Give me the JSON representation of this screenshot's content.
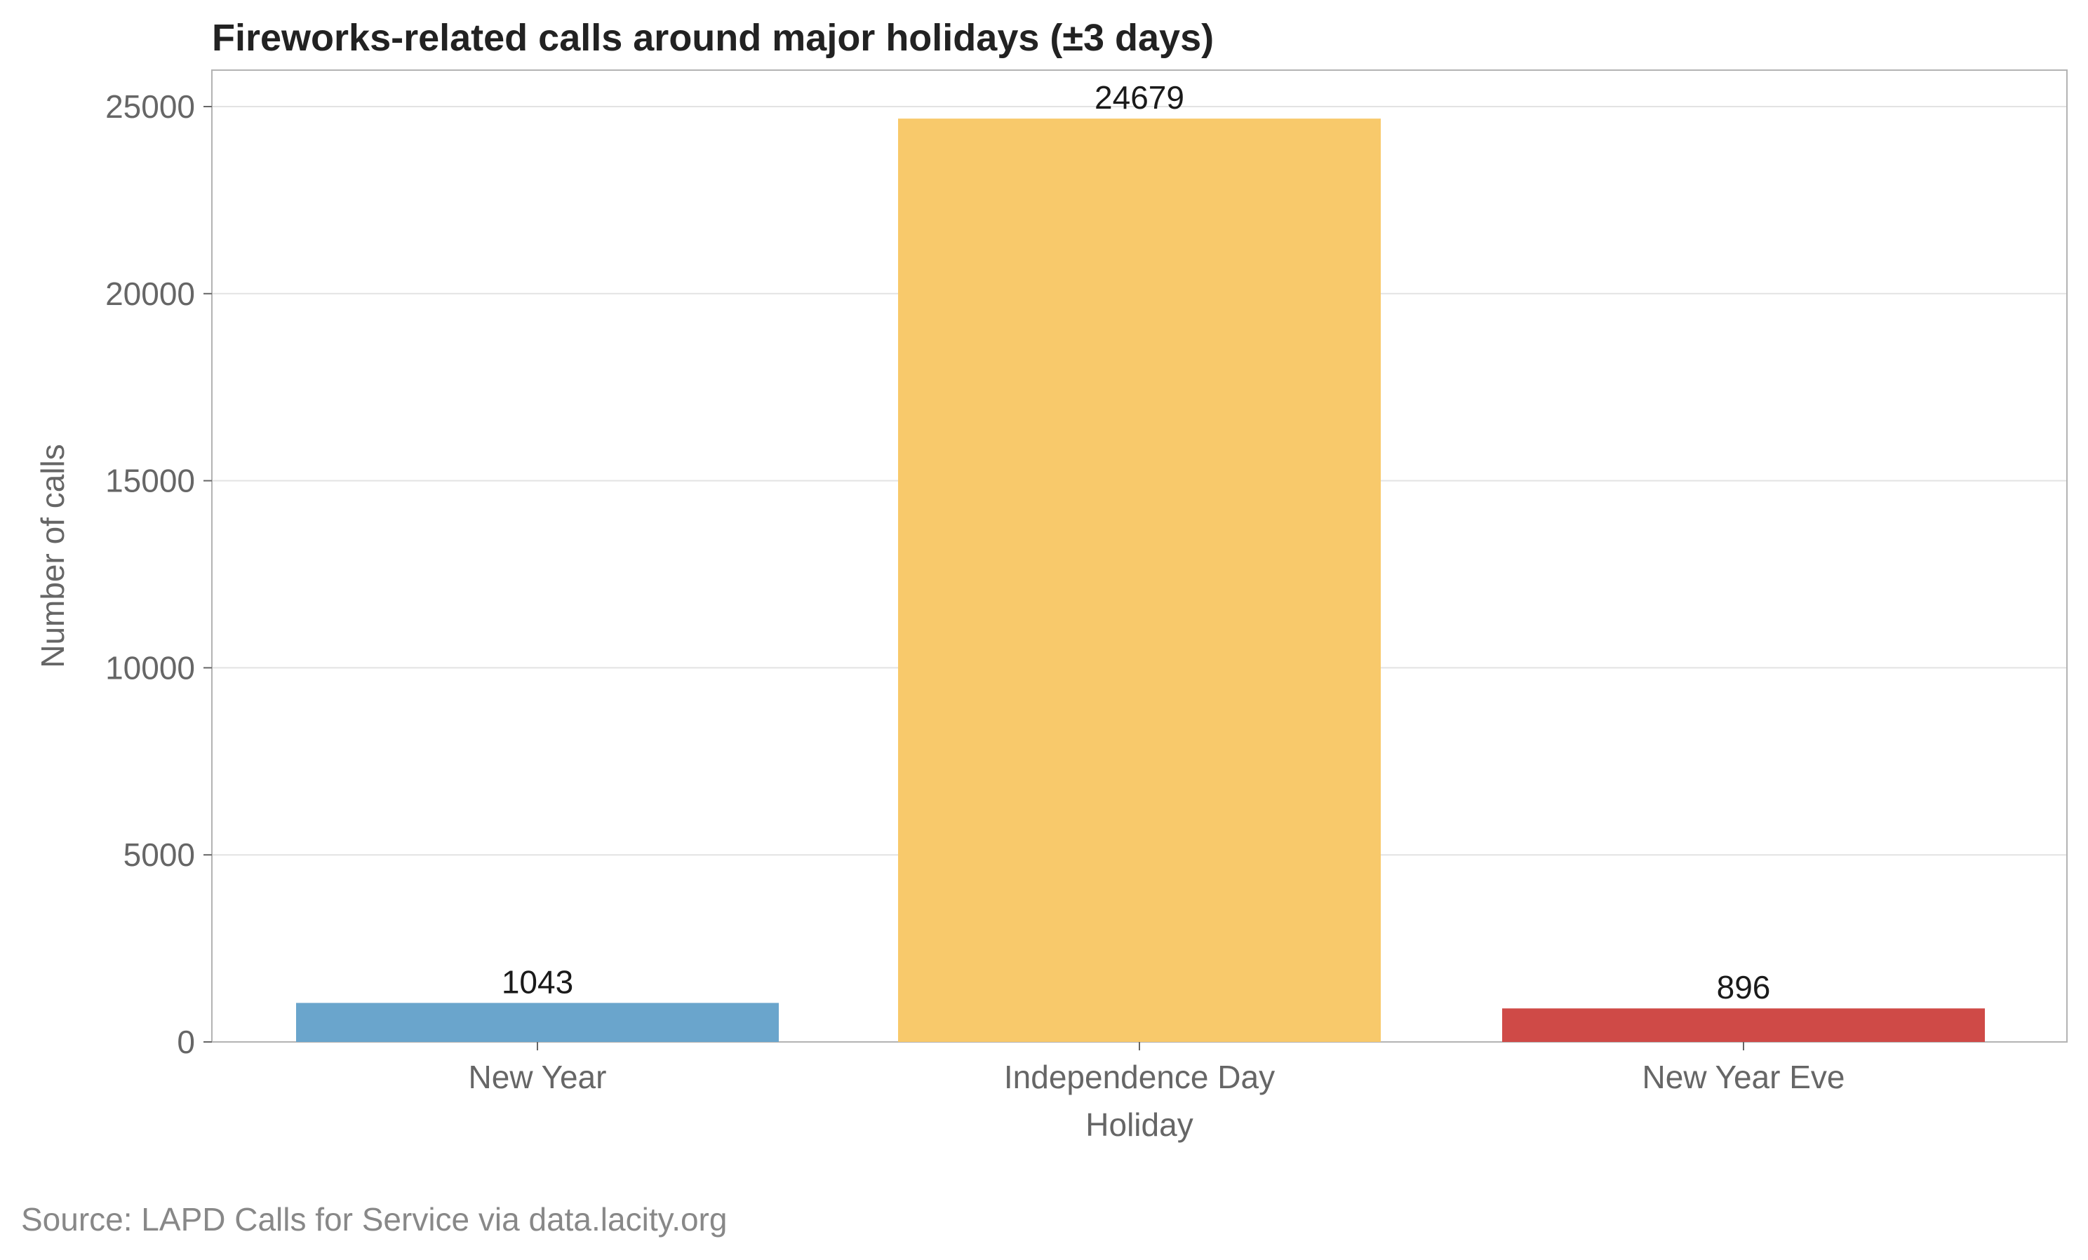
{
  "chart_data": {
    "type": "bar",
    "title": "Fireworks-related calls around major holidays (±3 days)",
    "xlabel": "Holiday",
    "ylabel": "Number of calls",
    "categories": [
      "New Year",
      "Independence Day",
      "New Year Eve"
    ],
    "values": [
      1043,
      24679,
      896
    ],
    "data_labels": [
      "1043",
      "24679",
      "896"
    ],
    "bar_colors": [
      "#6aa5cc",
      "#f8c96b",
      "#cf4a47"
    ],
    "ylim": [
      0,
      26000
    ],
    "yticks": [
      0,
      5000,
      10000,
      15000,
      20000,
      25000
    ],
    "ytick_labels": [
      "0",
      "5000",
      "10000",
      "15000",
      "20000",
      "25000"
    ],
    "grid": "horizontal",
    "legend": "none"
  },
  "source": "Source: LAPD Calls for Service via data.lacity.org"
}
